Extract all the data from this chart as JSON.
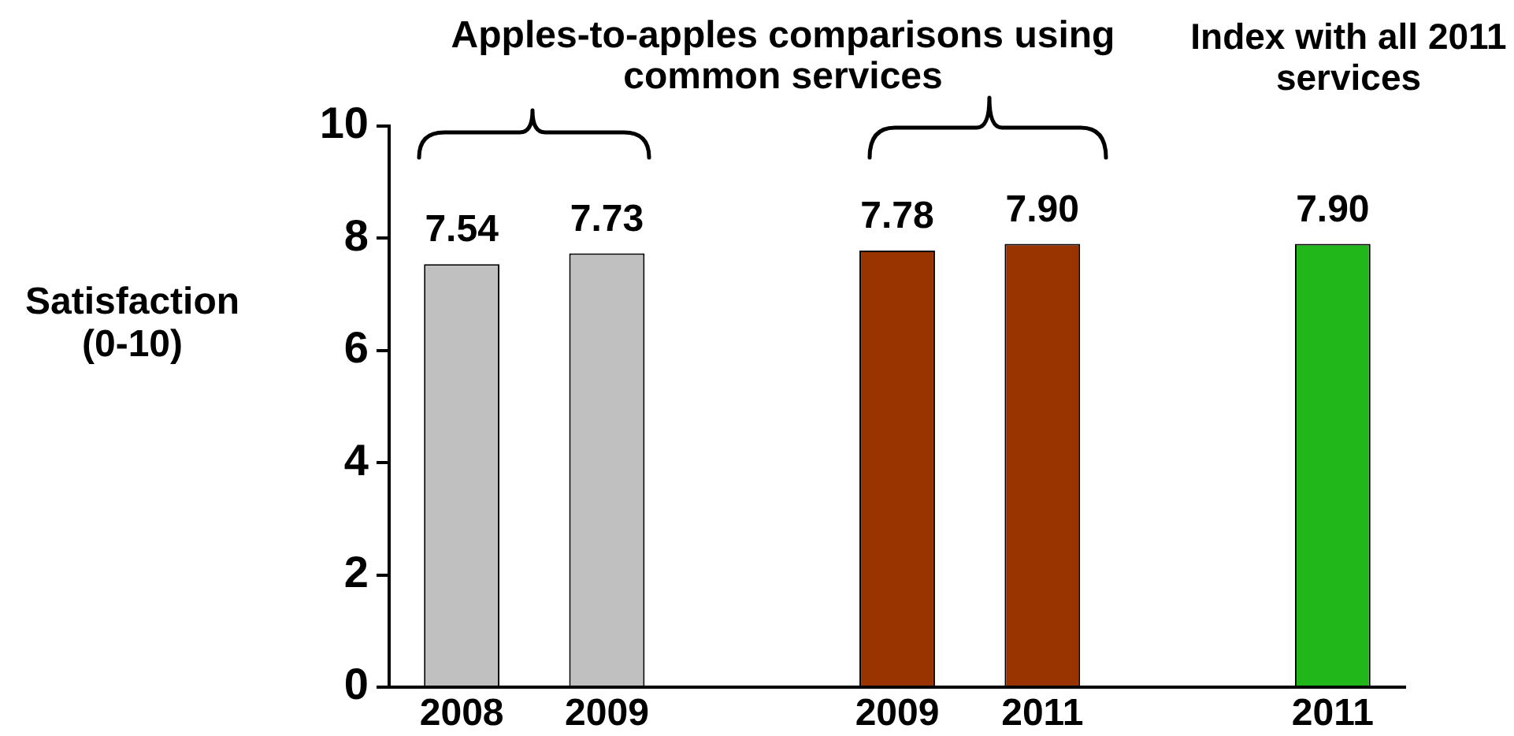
{
  "chart_data": {
    "type": "bar",
    "categories": [
      "2008",
      "2009",
      null,
      "2009",
      "2011",
      null,
      "2011"
    ],
    "values": [
      7.54,
      7.73,
      null,
      7.78,
      7.9,
      null,
      7.9
    ],
    "colors": [
      "#c0c0c0",
      "#c0c0c0",
      null,
      "#993300",
      "#993300",
      null,
      "#21b619"
    ],
    "value_labels": [
      "7.54",
      "7.73",
      null,
      "7.78",
      "7.90",
      null,
      "7.90"
    ],
    "ylabel": "Satisfaction (0-10)",
    "ylim": [
      0,
      10
    ],
    "yticks": [
      0,
      2,
      4,
      6,
      8,
      10
    ],
    "annotations": [
      "Apples-to-apples comparisons using common services",
      "Index with all 2011 services"
    ]
  }
}
